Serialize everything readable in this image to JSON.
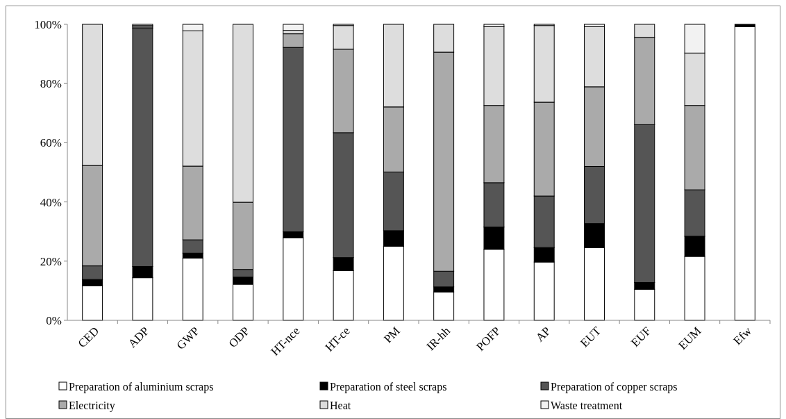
{
  "chart_data": {
    "type": "bar",
    "stacked": true,
    "categories": [
      "CED",
      "ADP",
      "GWP",
      "ODP",
      "HT-nce",
      "HT-ce",
      "PM",
      "IR-hh",
      "POFP",
      "AP",
      "EUT",
      "EUF",
      "EUM",
      "Efw"
    ],
    "ylim": [
      0,
      100
    ],
    "yticks": [
      {
        "value": 0,
        "label": "0%"
      },
      {
        "value": 20,
        "label": "20%"
      },
      {
        "value": 40,
        "label": "40%"
      },
      {
        "value": 60,
        "label": "60%"
      },
      {
        "value": 80,
        "label": "80%"
      },
      {
        "value": 100,
        "label": "100%"
      }
    ],
    "legend": "bottom",
    "grid": false,
    "series": [
      {
        "name": "Preparation of aluminium scraps",
        "color": "#ffffff",
        "values": [
          11.7,
          14.4,
          21.0,
          12.2,
          27.9,
          16.8,
          25.0,
          9.6,
          24.0,
          19.7,
          24.6,
          10.5,
          21.6,
          99.2
        ]
      },
      {
        "name": "Preparation of steel scraps",
        "color": "#000000",
        "values": [
          2.1,
          3.8,
          1.7,
          2.4,
          2.0,
          4.4,
          5.3,
          1.7,
          7.5,
          4.9,
          8.1,
          2.3,
          6.8,
          0.8
        ]
      },
      {
        "name": "Preparation of copper scraps",
        "color": "#555555",
        "values": [
          4.6,
          80.4,
          4.5,
          2.6,
          62.3,
          42.2,
          19.8,
          5.3,
          15.0,
          17.4,
          19.3,
          53.3,
          15.7,
          0
        ]
      },
      {
        "name": "Electricity",
        "color": "#aaaaaa",
        "values": [
          33.9,
          0.5,
          24.9,
          22.7,
          4.6,
          28.2,
          22.0,
          74.0,
          26.1,
          31.7,
          26.9,
          29.5,
          28.5,
          0
        ]
      },
      {
        "name": "Heat",
        "color": "#dddddd",
        "values": [
          47.7,
          0.5,
          45.7,
          60.1,
          1.2,
          8.0,
          27.9,
          9.4,
          26.6,
          25.9,
          20.3,
          4.4,
          17.7,
          0
        ]
      },
      {
        "name": "Waste treatment",
        "color": "#f2f2f2",
        "values": [
          0,
          0.4,
          2.2,
          0,
          2.0,
          0.4,
          0,
          0,
          0.8,
          0.4,
          0.8,
          0,
          9.7,
          0
        ]
      }
    ]
  }
}
